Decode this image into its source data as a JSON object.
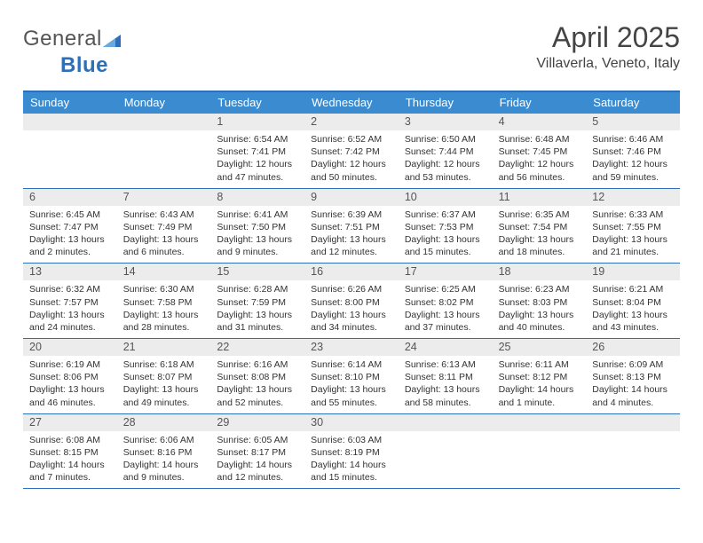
{
  "logo": {
    "word1": "General",
    "word2": "Blue"
  },
  "title": "April 2025",
  "subtitle": "Villaverla, Veneto, Italy",
  "colors": {
    "header_bg": "#3b8bd1",
    "header_border": "#2d6fb8",
    "daynum_bg": "#ececec",
    "text": "#333333",
    "logo_gray": "#555555",
    "logo_blue": "#2d6fb8"
  },
  "typography": {
    "title_fontsize": 32,
    "subtitle_fontsize": 16,
    "dow_fontsize": 13,
    "daynum_fontsize": 12.5,
    "body_fontsize": 10.5
  },
  "dow": [
    "Sunday",
    "Monday",
    "Tuesday",
    "Wednesday",
    "Thursday",
    "Friday",
    "Saturday"
  ],
  "weeks": [
    [
      {
        "blank": true
      },
      {
        "blank": true
      },
      {
        "n": "1",
        "sr": "6:54 AM",
        "ss": "7:41 PM",
        "dl": "12 hours and 47 minutes."
      },
      {
        "n": "2",
        "sr": "6:52 AM",
        "ss": "7:42 PM",
        "dl": "12 hours and 50 minutes."
      },
      {
        "n": "3",
        "sr": "6:50 AM",
        "ss": "7:44 PM",
        "dl": "12 hours and 53 minutes."
      },
      {
        "n": "4",
        "sr": "6:48 AM",
        "ss": "7:45 PM",
        "dl": "12 hours and 56 minutes."
      },
      {
        "n": "5",
        "sr": "6:46 AM",
        "ss": "7:46 PM",
        "dl": "12 hours and 59 minutes."
      }
    ],
    [
      {
        "n": "6",
        "sr": "6:45 AM",
        "ss": "7:47 PM",
        "dl": "13 hours and 2 minutes."
      },
      {
        "n": "7",
        "sr": "6:43 AM",
        "ss": "7:49 PM",
        "dl": "13 hours and 6 minutes."
      },
      {
        "n": "8",
        "sr": "6:41 AM",
        "ss": "7:50 PM",
        "dl": "13 hours and 9 minutes."
      },
      {
        "n": "9",
        "sr": "6:39 AM",
        "ss": "7:51 PM",
        "dl": "13 hours and 12 minutes."
      },
      {
        "n": "10",
        "sr": "6:37 AM",
        "ss": "7:53 PM",
        "dl": "13 hours and 15 minutes."
      },
      {
        "n": "11",
        "sr": "6:35 AM",
        "ss": "7:54 PM",
        "dl": "13 hours and 18 minutes."
      },
      {
        "n": "12",
        "sr": "6:33 AM",
        "ss": "7:55 PM",
        "dl": "13 hours and 21 minutes."
      }
    ],
    [
      {
        "n": "13",
        "sr": "6:32 AM",
        "ss": "7:57 PM",
        "dl": "13 hours and 24 minutes."
      },
      {
        "n": "14",
        "sr": "6:30 AM",
        "ss": "7:58 PM",
        "dl": "13 hours and 28 minutes."
      },
      {
        "n": "15",
        "sr": "6:28 AM",
        "ss": "7:59 PM",
        "dl": "13 hours and 31 minutes."
      },
      {
        "n": "16",
        "sr": "6:26 AM",
        "ss": "8:00 PM",
        "dl": "13 hours and 34 minutes."
      },
      {
        "n": "17",
        "sr": "6:25 AM",
        "ss": "8:02 PM",
        "dl": "13 hours and 37 minutes."
      },
      {
        "n": "18",
        "sr": "6:23 AM",
        "ss": "8:03 PM",
        "dl": "13 hours and 40 minutes."
      },
      {
        "n": "19",
        "sr": "6:21 AM",
        "ss": "8:04 PM",
        "dl": "13 hours and 43 minutes."
      }
    ],
    [
      {
        "n": "20",
        "sr": "6:19 AM",
        "ss": "8:06 PM",
        "dl": "13 hours and 46 minutes."
      },
      {
        "n": "21",
        "sr": "6:18 AM",
        "ss": "8:07 PM",
        "dl": "13 hours and 49 minutes."
      },
      {
        "n": "22",
        "sr": "6:16 AM",
        "ss": "8:08 PM",
        "dl": "13 hours and 52 minutes."
      },
      {
        "n": "23",
        "sr": "6:14 AM",
        "ss": "8:10 PM",
        "dl": "13 hours and 55 minutes."
      },
      {
        "n": "24",
        "sr": "6:13 AM",
        "ss": "8:11 PM",
        "dl": "13 hours and 58 minutes."
      },
      {
        "n": "25",
        "sr": "6:11 AM",
        "ss": "8:12 PM",
        "dl": "14 hours and 1 minute."
      },
      {
        "n": "26",
        "sr": "6:09 AM",
        "ss": "8:13 PM",
        "dl": "14 hours and 4 minutes."
      }
    ],
    [
      {
        "n": "27",
        "sr": "6:08 AM",
        "ss": "8:15 PM",
        "dl": "14 hours and 7 minutes."
      },
      {
        "n": "28",
        "sr": "6:06 AM",
        "ss": "8:16 PM",
        "dl": "14 hours and 9 minutes."
      },
      {
        "n": "29",
        "sr": "6:05 AM",
        "ss": "8:17 PM",
        "dl": "14 hours and 12 minutes."
      },
      {
        "n": "30",
        "sr": "6:03 AM",
        "ss": "8:19 PM",
        "dl": "14 hours and 15 minutes."
      },
      {
        "blank": true
      },
      {
        "blank": true
      },
      {
        "blank": true
      }
    ]
  ],
  "labels": {
    "sunrise": "Sunrise:",
    "sunset": "Sunset:",
    "daylight": "Daylight:"
  }
}
